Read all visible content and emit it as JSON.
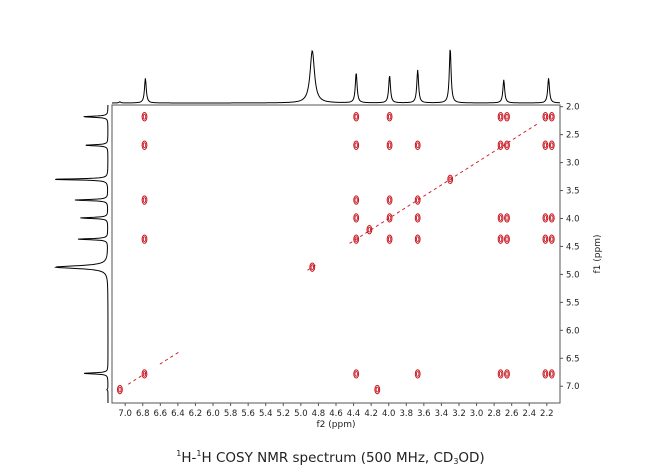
{
  "chart_data": {
    "type": "heatmap",
    "title_parts": {
      "sup1": "1",
      "h1": "H-",
      "sup2": "1",
      "h2": "H COSY NMR spectrum (500 MHz, CD",
      "sub": "3",
      "tail": "OD)"
    },
    "xlabel": "f2 (ppm)",
    "ylabel": "f1 (ppm)",
    "xlim": [
      7.15,
      2.05
    ],
    "ylim": [
      1.97,
      7.3
    ],
    "x_ticks": [
      "7.0",
      "6.8",
      "6.6",
      "6.4",
      "6.2",
      "6.0",
      "5.8",
      "5.6",
      "5.4",
      "5.2",
      "5.0",
      "4.8",
      "4.6",
      "4.4",
      "4.2",
      "4.0",
      "3.8",
      "3.6",
      "3.4",
      "3.2",
      "3.0",
      "2.8",
      "2.6",
      "2.4",
      "2.2"
    ],
    "y_ticks": [
      "2.0",
      "2.5",
      "3.0",
      "3.5",
      "4.0",
      "4.5",
      "5.0",
      "5.5",
      "6.0",
      "6.5",
      "7.0"
    ],
    "contour_color": "#c8141e",
    "projection_color": "#000000",
    "peaks_1d": [
      {
        "ppm": 7.06,
        "intensity": 0.02
      },
      {
        "ppm": 6.77,
        "intensity": 0.45
      },
      {
        "ppm": 4.87,
        "intensity": 0.95
      },
      {
        "ppm": 4.37,
        "intensity": 0.55
      },
      {
        "ppm": 3.99,
        "intensity": 0.5
      },
      {
        "ppm": 3.67,
        "intensity": 0.6
      },
      {
        "ppm": 3.3,
        "intensity": 1.0
      },
      {
        "ppm": 2.69,
        "intensity": 0.42
      },
      {
        "ppm": 2.18,
        "intensity": 0.45
      }
    ],
    "cross_peaks": [
      {
        "f2": 6.78,
        "f1": 2.18
      },
      {
        "f2": 6.78,
        "f1": 2.69
      },
      {
        "f2": 6.78,
        "f1": 3.67
      },
      {
        "f2": 6.78,
        "f1": 4.37
      },
      {
        "f2": 6.78,
        "f1": 6.78
      },
      {
        "f2": 4.37,
        "f1": 2.18
      },
      {
        "f2": 4.37,
        "f1": 2.69
      },
      {
        "f2": 4.37,
        "f1": 3.67
      },
      {
        "f2": 4.37,
        "f1": 3.99
      },
      {
        "f2": 4.37,
        "f1": 4.37
      },
      {
        "f2": 4.37,
        "f1": 6.78
      },
      {
        "f2": 3.99,
        "f1": 2.18
      },
      {
        "f2": 3.99,
        "f1": 2.69
      },
      {
        "f2": 3.99,
        "f1": 3.67
      },
      {
        "f2": 3.99,
        "f1": 3.99
      },
      {
        "f2": 3.99,
        "f1": 4.37
      },
      {
        "f2": 3.67,
        "f1": 2.69
      },
      {
        "f2": 3.67,
        "f1": 3.67
      },
      {
        "f2": 3.67,
        "f1": 3.99
      },
      {
        "f2": 3.67,
        "f1": 4.37
      },
      {
        "f2": 3.67,
        "f1": 6.78
      },
      {
        "f2": 2.69,
        "f1": 2.18
      },
      {
        "f2": 2.69,
        "f1": 2.69
      },
      {
        "f2": 2.69,
        "f1": 3.99
      },
      {
        "f2": 2.69,
        "f1": 4.37
      },
      {
        "f2": 2.69,
        "f1": 6.78
      },
      {
        "f2": 2.18,
        "f1": 2.18
      },
      {
        "f2": 2.18,
        "f1": 2.69
      },
      {
        "f2": 2.18,
        "f1": 3.99
      },
      {
        "f2": 2.18,
        "f1": 4.37
      },
      {
        "f2": 2.18,
        "f1": 6.78
      },
      {
        "f2": 4.87,
        "f1": 4.87
      },
      {
        "f2": 3.3,
        "f1": 3.3
      },
      {
        "f2": 7.06,
        "f1": 7.06
      },
      {
        "f2": 4.13,
        "f1": 7.06
      },
      {
        "f2": 4.22,
        "f1": 4.2
      }
    ]
  }
}
